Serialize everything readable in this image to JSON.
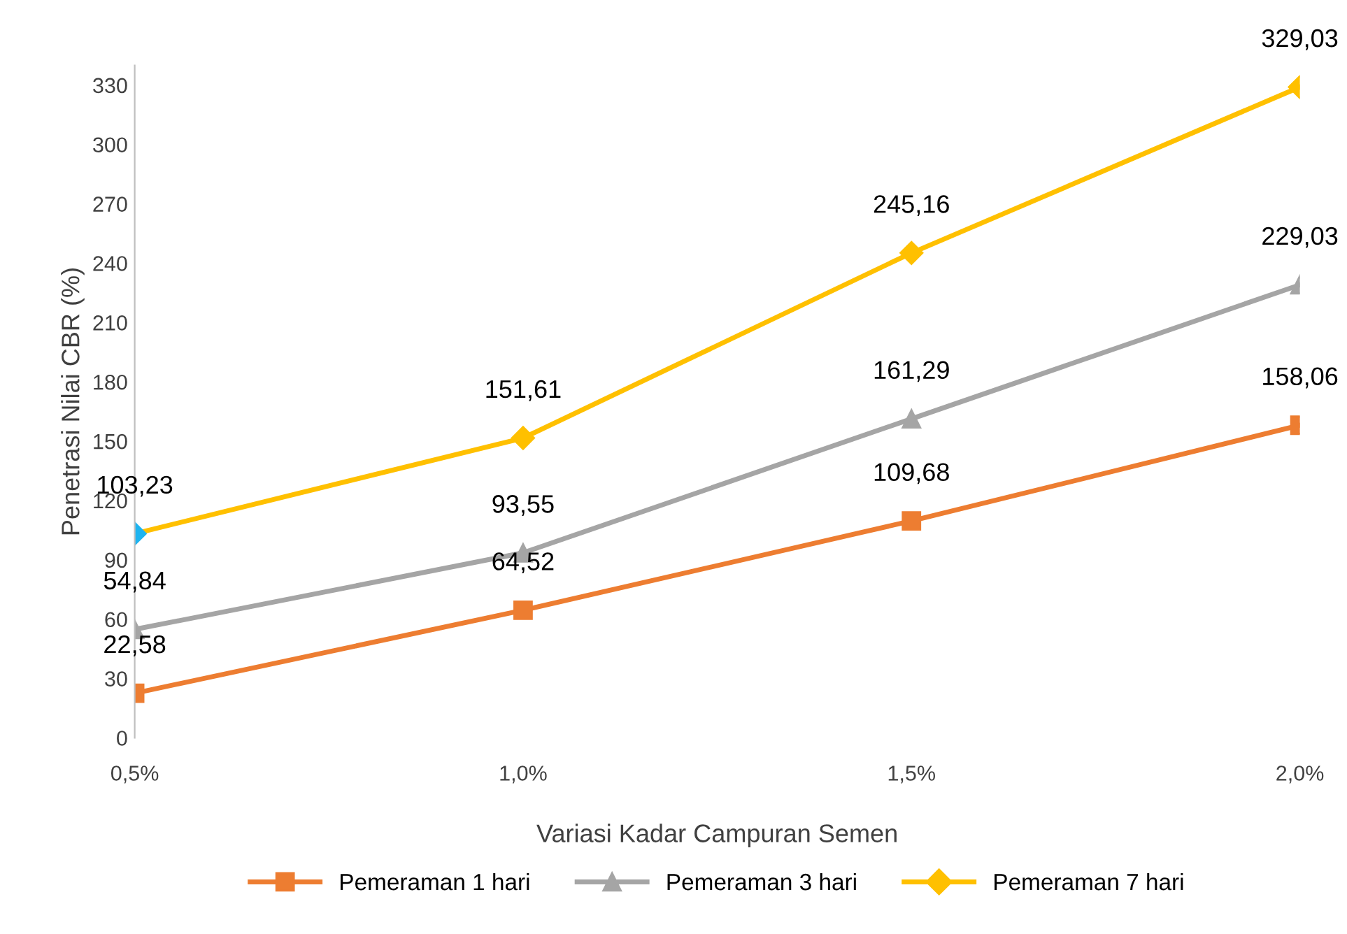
{
  "chart_data": {
    "type": "line",
    "xlabel": "Variasi Kadar Campuran Semen",
    "ylabel": "Penetrasi Nilai CBR (%)",
    "categories": [
      "0,5%",
      "1,0%",
      "1,5%",
      "2,0%"
    ],
    "series": [
      {
        "name": "Pemeraman 1 hari",
        "color": "#ed7d31",
        "marker": "square",
        "values": [
          22.58,
          64.52,
          109.68,
          158.06
        ],
        "value_labels": [
          "22,58",
          "64,52",
          "109,68",
          "158,06"
        ]
      },
      {
        "name": "Pemeraman 3 hari",
        "color": "#a5a5a5",
        "marker": "triangle",
        "values": [
          54.84,
          93.55,
          161.29,
          229.03
        ],
        "value_labels": [
          "54,84",
          "93,55",
          "161,29",
          "229,03"
        ]
      },
      {
        "name": "Pemeraman 7 hari",
        "color": "#ffc000",
        "colors": [
          "#1eb4f0",
          "#ffc000",
          "#ffc000",
          "#ffc000"
        ],
        "marker": "diamond",
        "values": [
          103.23,
          151.61,
          245.16,
          329.03
        ],
        "value_labels": [
          "103,23",
          "151,61",
          "245,16",
          "329,03"
        ]
      }
    ],
    "ylim": [
      0,
      340
    ],
    "yticks": [
      0,
      30,
      60,
      90,
      120,
      150,
      180,
      210,
      240,
      270,
      300,
      330
    ],
    "grid": false,
    "legend": "bottom",
    "line_style": "solid"
  }
}
